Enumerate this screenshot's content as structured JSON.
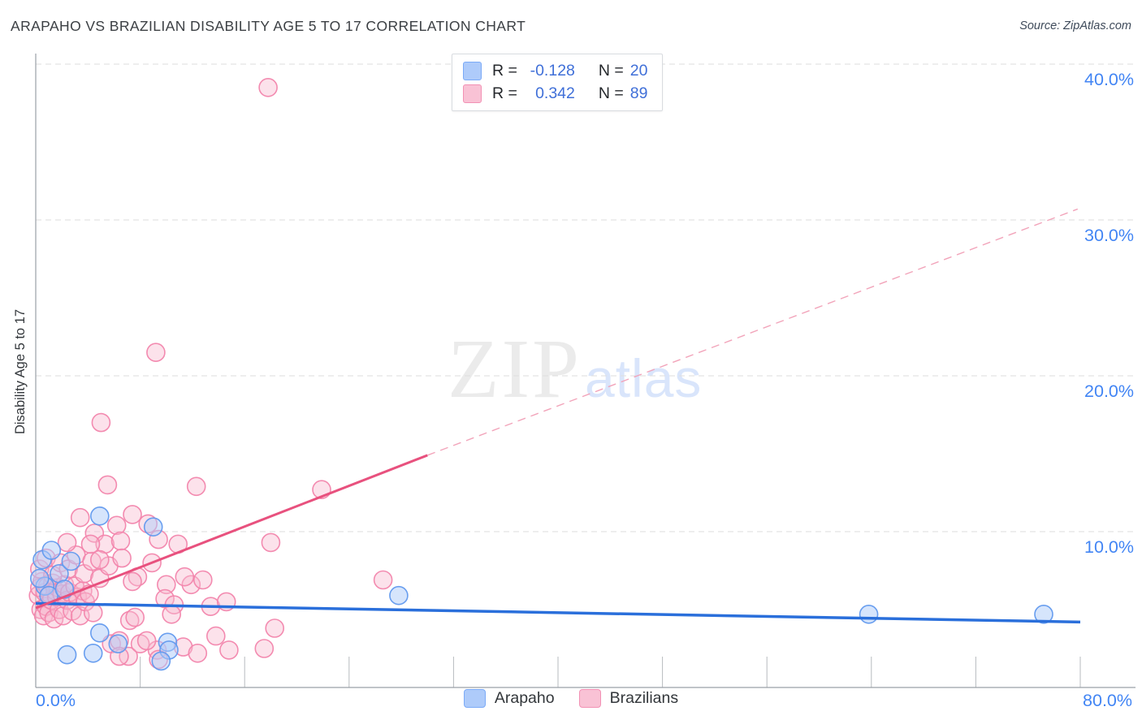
{
  "header": {
    "title": "ARAPAHO VS BRAZILIAN DISABILITY AGE 5 TO 17 CORRELATION CHART",
    "source": "Source: ZipAtlas.com"
  },
  "watermark": {
    "zip": "ZIP",
    "atlas": "atlas"
  },
  "axes": {
    "y_title": "Disability Age 5 to 17",
    "x_min_label": "0.0%",
    "x_max_label": "80.0%",
    "y_tick_labels": [
      "10.0%",
      "20.0%",
      "30.0%",
      "40.0%"
    ]
  },
  "legend_box": {
    "r_prefix": "R =",
    "n_prefix": "N =",
    "rows": [
      {
        "series": "Arapaho",
        "r": "-0.128",
        "n": "20"
      },
      {
        "series": "Brazilians",
        "r": "0.342",
        "n": "89"
      }
    ]
  },
  "bottom_legend": {
    "items": [
      {
        "label": "Arapaho"
      },
      {
        "label": "Brazilians"
      }
    ]
  },
  "chart_data": {
    "type": "scatter",
    "title": "ARAPAHO VS BRAZILIAN DISABILITY AGE 5 TO 17 CORRELATION CHART",
    "xlabel": "",
    "ylabel": "Disability Age 5 to 17",
    "xlim": [
      0,
      80
    ],
    "ylim": [
      0,
      42
    ],
    "x_tick_step": 8,
    "grid_y_values": [
      10,
      20,
      30,
      40
    ],
    "grid_on": true,
    "legend_position": "bottom-center",
    "units": "percent",
    "colors": {
      "tick_label": "#4285f4",
      "grid": "#dedede",
      "axis": "#9aa0a6",
      "tick": "#b7bbbf"
    },
    "series": [
      {
        "name": "Brazilians",
        "r": 0.342,
        "n": 89,
        "fill": "#f8bbd0",
        "fill_opacity": 0.42,
        "stroke": "#f285ac",
        "points": [
          [
            0.2,
            5.9
          ],
          [
            0.3,
            6.4
          ],
          [
            0.4,
            5.0
          ],
          [
            0.5,
            6.8
          ],
          [
            0.6,
            4.6
          ],
          [
            0.7,
            6.1
          ],
          [
            0.8,
            5.2
          ],
          [
            0.9,
            6.5
          ],
          [
            1.0,
            4.8
          ],
          [
            1.1,
            6.0
          ],
          [
            1.2,
            5.6
          ],
          [
            1.3,
            6.7
          ],
          [
            1.4,
            4.4
          ],
          [
            1.5,
            6.2
          ],
          [
            1.6,
            5.8
          ],
          [
            1.7,
            6.4
          ],
          [
            1.8,
            5.0
          ],
          [
            2.0,
            6.0
          ],
          [
            2.1,
            4.6
          ],
          [
            2.2,
            6.6
          ],
          [
            2.4,
            5.6
          ],
          [
            2.6,
            6.1
          ],
          [
            2.8,
            4.9
          ],
          [
            3.0,
            6.5
          ],
          [
            3.2,
            5.8
          ],
          [
            3.4,
            4.6
          ],
          [
            3.6,
            6.2
          ],
          [
            3.8,
            5.5
          ],
          [
            4.1,
            6.0
          ],
          [
            4.4,
            4.8
          ],
          [
            0.3,
            7.6
          ],
          [
            0.8,
            8.3
          ],
          [
            1.3,
            7.2
          ],
          [
            1.9,
            8.0
          ],
          [
            2.5,
            7.6
          ],
          [
            3.1,
            8.5
          ],
          [
            3.7,
            7.3
          ],
          [
            4.3,
            8.1
          ],
          [
            4.9,
            7.0
          ],
          [
            5.6,
            7.8
          ],
          [
            2.4,
            9.3
          ],
          [
            3.4,
            10.9
          ],
          [
            4.5,
            9.9
          ],
          [
            5.3,
            9.2
          ],
          [
            6.2,
            10.4
          ],
          [
            6.5,
            9.4
          ],
          [
            7.4,
            11.1
          ],
          [
            8.6,
            10.5
          ],
          [
            9.4,
            9.5
          ],
          [
            10.9,
            9.2
          ],
          [
            8.9,
            8.0
          ],
          [
            10.0,
            6.6
          ],
          [
            11.9,
            6.6
          ],
          [
            9.9,
            5.7
          ],
          [
            10.6,
            5.3
          ],
          [
            10.4,
            4.7
          ],
          [
            13.4,
            5.2
          ],
          [
            14.6,
            5.5
          ],
          [
            5.8,
            2.8
          ],
          [
            6.4,
            3.0
          ],
          [
            7.1,
            2.0
          ],
          [
            8.0,
            2.8
          ],
          [
            9.3,
            2.4
          ],
          [
            6.4,
            2.0
          ],
          [
            8.5,
            3.0
          ],
          [
            9.4,
            1.8
          ],
          [
            11.3,
            2.6
          ],
          [
            12.4,
            2.2
          ],
          [
            13.8,
            3.3
          ],
          [
            14.8,
            2.4
          ],
          [
            17.5,
            2.5
          ],
          [
            18.3,
            3.8
          ],
          [
            17.8,
            38.5
          ],
          [
            9.2,
            21.5
          ],
          [
            5.0,
            17.0
          ],
          [
            5.5,
            13.0
          ],
          [
            12.3,
            12.9
          ],
          [
            21.9,
            12.7
          ],
          [
            18.0,
            9.3
          ],
          [
            26.6,
            6.9
          ],
          [
            4.2,
            9.2
          ],
          [
            6.6,
            8.3
          ],
          [
            7.8,
            7.1
          ],
          [
            4.9,
            8.2
          ],
          [
            7.4,
            6.8
          ],
          [
            11.4,
            7.1
          ],
          [
            12.8,
            6.9
          ],
          [
            7.2,
            4.3
          ],
          [
            7.6,
            4.5
          ]
        ]
      },
      {
        "name": "Arapaho",
        "r": -0.128,
        "n": 20,
        "fill": "#aecbfa",
        "fill_opacity": 0.5,
        "stroke": "#6199ee",
        "points": [
          [
            0.5,
            8.2
          ],
          [
            1.2,
            8.8
          ],
          [
            1.8,
            7.3
          ],
          [
            0.7,
            6.5
          ],
          [
            2.7,
            8.1
          ],
          [
            1.0,
            5.9
          ],
          [
            2.2,
            6.3
          ],
          [
            0.3,
            7.0
          ],
          [
            4.9,
            11.0
          ],
          [
            9.0,
            10.3
          ],
          [
            2.4,
            2.1
          ],
          [
            4.4,
            2.2
          ],
          [
            4.9,
            3.5
          ],
          [
            6.3,
            2.8
          ],
          [
            10.1,
            2.9
          ],
          [
            10.2,
            2.4
          ],
          [
            9.6,
            1.7
          ],
          [
            27.8,
            5.9
          ],
          [
            63.8,
            4.7
          ],
          [
            77.2,
            4.7
          ]
        ]
      }
    ],
    "trend_lines": [
      {
        "series": "Arapaho",
        "style": "solid",
        "color": "#2a6fdb",
        "width": 3.5,
        "x1": 0,
        "y1": 5.4,
        "x2": 80,
        "y2": 4.2
      },
      {
        "series": "Brazilians",
        "style": "solid",
        "color": "#e8517e",
        "width": 3,
        "x1": 0,
        "y1": 5.1,
        "x2": 30,
        "y2": 14.9
      },
      {
        "series": "Brazilians",
        "style": "dashed",
        "color": "#f2a4ba",
        "width": 1.4,
        "x1": 30,
        "y1": 14.9,
        "x2": 79.8,
        "y2": 30.7
      }
    ]
  }
}
